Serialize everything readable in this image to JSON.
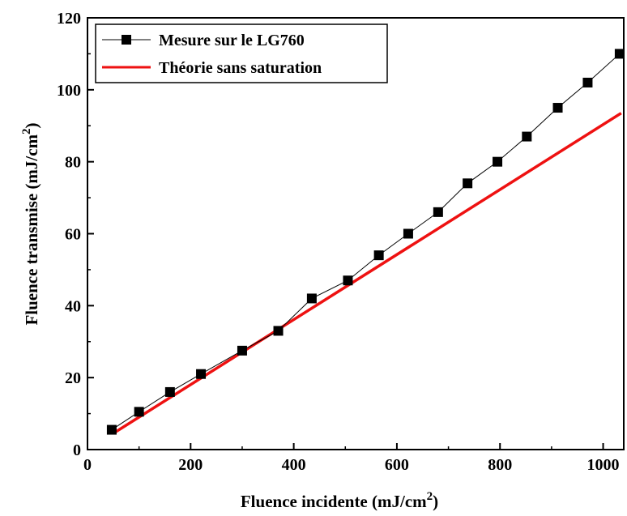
{
  "chart_data": {
    "type": "line",
    "title": "",
    "xlabel": "Fluence incidente (mJ/cm",
    "xlabel_sup": "2",
    "xlabel_end": ")",
    "ylabel": "Fluence transmise (mJ/cm",
    "ylabel_sup": "2",
    "ylabel_end": ")",
    "xlim": [
      0,
      1040
    ],
    "ylim": [
      0,
      120
    ],
    "x_ticks": [
      0,
      200,
      400,
      600,
      800,
      1000
    ],
    "y_ticks": [
      0,
      20,
      40,
      60,
      80,
      100,
      120
    ],
    "x_tick_labels": [
      "0",
      "200",
      "400",
      "600",
      "800",
      "1000"
    ],
    "y_tick_labels": [
      "0",
      "20",
      "40",
      "60",
      "80",
      "100",
      "120"
    ],
    "legend_position": "top-left",
    "series": [
      {
        "name": "Mesure sur le LG760",
        "color": "#000000",
        "marker": "square",
        "x": [
          47,
          100,
          160,
          220,
          300,
          370,
          435,
          505,
          565,
          622,
          680,
          737,
          795,
          852,
          912,
          970,
          1032
        ],
        "y": [
          5.5,
          10.5,
          16,
          21,
          27.5,
          33,
          42,
          47,
          54,
          60,
          66,
          74,
          80,
          87,
          95,
          102,
          110
        ]
      },
      {
        "name": "Théorie sans saturation",
        "color": "#ee1111",
        "marker": "none",
        "x": [
          50,
          1035
        ],
        "y": [
          4.5,
          93.5
        ]
      }
    ]
  }
}
